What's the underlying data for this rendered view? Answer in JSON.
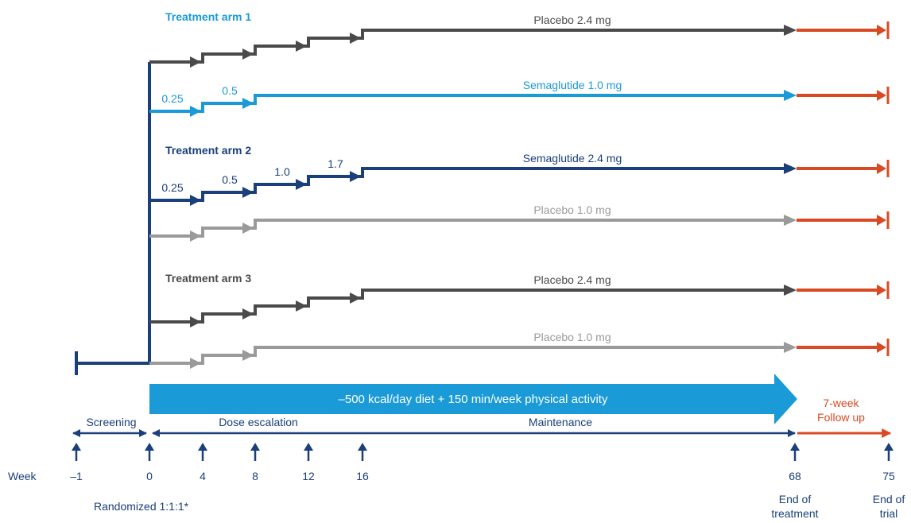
{
  "colors": {
    "navy": "#1a3f7a",
    "light_blue": "#1a9ad6",
    "dark_gray": "#4a4a4a",
    "light_gray": "#9a9a9a",
    "red": "#d94a24",
    "banner": "#1a9ad6",
    "white": "#ffffff"
  },
  "arm_labels": {
    "arm1": "Treatment arm 1",
    "arm2": "Treatment arm 2",
    "arm3": "Treatment arm 3"
  },
  "tracks": [
    {
      "id": "a1-placebo",
      "label": "Placebo 2.4 mg",
      "color": "dark_gray",
      "steps": 5,
      "doses": []
    },
    {
      "id": "a1-sema",
      "label": "Semaglutide 1.0 mg",
      "color": "light_blue",
      "steps": 3,
      "doses": [
        "0.25",
        "0.5"
      ]
    },
    {
      "id": "a2-sema",
      "label": "Semaglutide 2.4 mg",
      "color": "navy",
      "steps": 5,
      "doses": [
        "0.25",
        "0.5",
        "1.0",
        "1.7"
      ]
    },
    {
      "id": "a2-placebo",
      "label": "Placebo 1.0 mg",
      "color": "light_gray",
      "steps": 3,
      "doses": []
    },
    {
      "id": "a3-placebo24",
      "label": "Placebo 2.4 mg",
      "color": "dark_gray",
      "steps": 5,
      "doses": []
    },
    {
      "id": "a3-placebo10",
      "label": "Placebo 1.0 mg",
      "color": "light_gray",
      "steps": 3,
      "doses": []
    }
  ],
  "banner_text": "–500 kcal/day diet + 150 min/week physical activity",
  "phases": {
    "screening": "Screening",
    "dose_escalation": "Dose escalation",
    "maintenance": "Maintenance",
    "follow_up_line1": "7-week",
    "follow_up_line2": "Follow up"
  },
  "week_label": "Week",
  "weeks": [
    "–1",
    "0",
    "4",
    "8",
    "12",
    "16",
    "68",
    "75"
  ],
  "notes": {
    "randomized": "Randomized 1:1:1*",
    "end_treatment_line1": "End of",
    "end_treatment_line2": "treatment",
    "end_trial_line1": "End of",
    "end_trial_line2": "trial"
  }
}
